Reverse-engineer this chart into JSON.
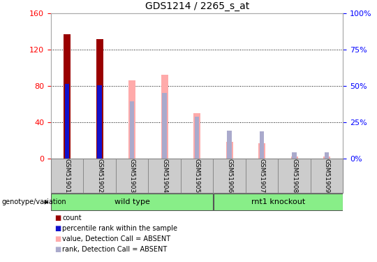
{
  "title": "GDS1214 / 2265_s_at",
  "samples": [
    "GSM51901",
    "GSM51902",
    "GSM51903",
    "GSM51904",
    "GSM51905",
    "GSM51906",
    "GSM51907",
    "GSM51908",
    "GSM51909"
  ],
  "count_values": [
    137,
    131,
    0,
    0,
    0,
    0,
    0,
    0,
    0
  ],
  "percentile_rank": [
    82,
    81,
    0,
    0,
    0,
    0,
    0,
    0,
    0
  ],
  "absent_value": [
    0,
    0,
    86,
    92,
    50,
    18,
    17,
    2,
    2
  ],
  "absent_rank": [
    0,
    0,
    63,
    72,
    46,
    31,
    30,
    7,
    7
  ],
  "ylim_left": [
    0,
    160
  ],
  "ylim_right": [
    0,
    100
  ],
  "yticks_left": [
    0,
    40,
    80,
    120,
    160
  ],
  "yticks_right": [
    0,
    25,
    50,
    75,
    100
  ],
  "yticklabels_right": [
    "0%",
    "25%",
    "50%",
    "75%",
    "100%"
  ],
  "group_split": 5,
  "n_samples": 9,
  "color_count": "#990000",
  "color_rank": "#1111CC",
  "color_absent_value": "#FFAAAA",
  "color_absent_rank": "#AAAACC",
  "bg_xtick": "#cccccc",
  "green_light": "#88ee88",
  "green_bright": "#44ee44",
  "legend_items": [
    {
      "color": "#990000",
      "label": "count"
    },
    {
      "color": "#1111CC",
      "label": "percentile rank within the sample"
    },
    {
      "color": "#FFAAAA",
      "label": "value, Detection Call = ABSENT"
    },
    {
      "color": "#AAAACC",
      "label": "rank, Detection Call = ABSENT"
    }
  ]
}
